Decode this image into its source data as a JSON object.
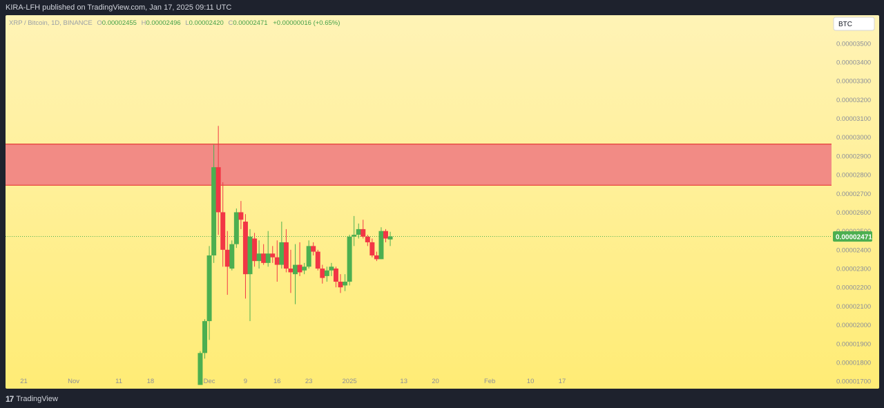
{
  "header": {
    "published_text": "KIRA-LFH published on TradingView.com, Jan 17, 2025 09:11 UTC"
  },
  "footer": {
    "logo_glyph": "17",
    "brand": "TradingView"
  },
  "symbol": {
    "name": "XRP / Bitcoin, 1D, BINANCE",
    "o_label": "O",
    "o_value": "0.00002455",
    "h_label": "H",
    "h_value": "0.00002496",
    "l_label": "L",
    "l_value": "0.00002420",
    "c_label": "C",
    "c_value": "0.00002471",
    "change": "+0.00000016 (+0.65%)"
  },
  "currency_button": "BTC",
  "colors": {
    "up": "#4caf50",
    "down": "#f23645",
    "zone_fill": "#f28b85",
    "zone_border": "#e53935",
    "bg_top": "#fff3b6",
    "bg_bottom": "#ffec75",
    "last_price_bg": "#4caf50"
  },
  "chart_data": {
    "type": "candlestick",
    "y_unit": "BTC",
    "y_range": [
      1.66e-05,
      3.65e-05
    ],
    "y_ticks": [
      1.7e-05,
      1.8e-05,
      1.9e-05,
      2e-05,
      2.1e-05,
      2.2e-05,
      2.3e-05,
      2.4e-05,
      2.5e-05,
      2.6e-05,
      2.7e-05,
      2.8e-05,
      2.9e-05,
      3e-05,
      3.1e-05,
      3.2e-05,
      3.3e-05,
      3.4e-05,
      3.5e-05
    ],
    "y_tick_labels": [
      "0.00001700",
      "0.00001800",
      "0.00001900",
      "0.00002000",
      "0.00002100",
      "0.00002200",
      "0.00002300",
      "0.00002400",
      "0.00002500",
      "0.00002600",
      "0.00002700",
      "0.00002800",
      "0.00002900",
      "0.00003000",
      "0.00003100",
      "0.00003200",
      "0.00003300",
      "0.00003400",
      "0.00003500"
    ],
    "x_ticks": [
      {
        "label": "21",
        "date": "2024-10-21"
      },
      {
        "label": "Nov",
        "date": "2024-11-01"
      },
      {
        "label": "11",
        "date": "2024-11-11"
      },
      {
        "label": "18",
        "date": "2024-11-18"
      },
      {
        "label": "Dec",
        "date": "2024-12-01"
      },
      {
        "label": "9",
        "date": "2024-12-09"
      },
      {
        "label": "16",
        "date": "2024-12-16"
      },
      {
        "label": "23",
        "date": "2024-12-23"
      },
      {
        "label": "2025",
        "date": "2025-01-01"
      },
      {
        "label": "13",
        "date": "2025-01-13"
      },
      {
        "label": "20",
        "date": "2025-01-20"
      },
      {
        "label": "Feb",
        "date": "2025-02-01"
      },
      {
        "label": "10",
        "date": "2025-02-10"
      },
      {
        "label": "17",
        "date": "2025-02-17"
      }
    ],
    "last_price": 2.471e-05,
    "last_price_label": "0.00002471",
    "resistance_zone": [
      2.744e-05,
      2.963e-05
    ],
    "candles": [
      {
        "date": "2024-11-29",
        "o": 1.68e-05,
        "h": 1.86e-05,
        "l": 1.68e-05,
        "c": 1.85e-05
      },
      {
        "date": "2024-11-30",
        "o": 1.85e-05,
        "h": 2.03e-05,
        "l": 1.82e-05,
        "c": 2.02e-05
      },
      {
        "date": "2024-12-01",
        "o": 2.02e-05,
        "h": 2.42e-05,
        "l": 1.92e-05,
        "c": 2.37e-05
      },
      {
        "date": "2024-12-02",
        "o": 2.37e-05,
        "h": 2.96e-05,
        "l": 2.33e-05,
        "c": 2.84e-05
      },
      {
        "date": "2024-12-03",
        "o": 2.84e-05,
        "h": 3.06e-05,
        "l": 2.48e-05,
        "c": 2.6e-05
      },
      {
        "date": "2024-12-04",
        "o": 2.6e-05,
        "h": 2.76e-05,
        "l": 2.31e-05,
        "c": 2.4e-05
      },
      {
        "date": "2024-12-05",
        "o": 2.4e-05,
        "h": 2.5e-05,
        "l": 2.16e-05,
        "c": 2.31e-05
      },
      {
        "date": "2024-12-06",
        "o": 2.3e-05,
        "h": 2.45e-05,
        "l": 2.29e-05,
        "c": 2.43e-05
      },
      {
        "date": "2024-12-07",
        "o": 2.43e-05,
        "h": 2.62e-05,
        "l": 2.41e-05,
        "c": 2.6e-05
      },
      {
        "date": "2024-12-08",
        "o": 2.6e-05,
        "h": 2.66e-05,
        "l": 2.51e-05,
        "c": 2.56e-05
      },
      {
        "date": "2024-12-09",
        "o": 2.55e-05,
        "h": 2.59e-05,
        "l": 2.14e-05,
        "c": 2.27e-05
      },
      {
        "date": "2024-12-10",
        "o": 2.27e-05,
        "h": 2.51e-05,
        "l": 2.02e-05,
        "c": 2.47e-05
      },
      {
        "date": "2024-12-11",
        "o": 2.46e-05,
        "h": 2.49e-05,
        "l": 2.31e-05,
        "c": 2.34e-05
      },
      {
        "date": "2024-12-12",
        "o": 2.34e-05,
        "h": 2.45e-05,
        "l": 2.3e-05,
        "c": 2.38e-05
      },
      {
        "date": "2024-12-13",
        "o": 2.38e-05,
        "h": 2.43e-05,
        "l": 2.32e-05,
        "c": 2.33e-05
      },
      {
        "date": "2024-12-14",
        "o": 2.33e-05,
        "h": 2.5e-05,
        "l": 2.31e-05,
        "c": 2.38e-05
      },
      {
        "date": "2024-12-15",
        "o": 2.38e-05,
        "h": 2.42e-05,
        "l": 2.33e-05,
        "c": 2.36e-05
      },
      {
        "date": "2024-12-16",
        "o": 2.36e-05,
        "h": 2.45e-05,
        "l": 2.23e-05,
        "c": 2.32e-05
      },
      {
        "date": "2024-12-17",
        "o": 2.32e-05,
        "h": 2.55e-05,
        "l": 2.3e-05,
        "c": 2.44e-05
      },
      {
        "date": "2024-12-18",
        "o": 2.44e-05,
        "h": 2.51e-05,
        "l": 2.28e-05,
        "c": 2.3e-05
      },
      {
        "date": "2024-12-19",
        "o": 2.3e-05,
        "h": 2.4e-05,
        "l": 2.17e-05,
        "c": 2.28e-05
      },
      {
        "date": "2024-12-20",
        "o": 2.27e-05,
        "h": 2.43e-05,
        "l": 2.11e-05,
        "c": 2.32e-05
      },
      {
        "date": "2024-12-21",
        "o": 2.32e-05,
        "h": 2.44e-05,
        "l": 2.26e-05,
        "c": 2.28e-05
      },
      {
        "date": "2024-12-22",
        "o": 2.29e-05,
        "h": 2.33e-05,
        "l": 2.27e-05,
        "c": 2.31e-05
      },
      {
        "date": "2024-12-23",
        "o": 2.31e-05,
        "h": 2.45e-05,
        "l": 2.3e-05,
        "c": 2.42e-05
      },
      {
        "date": "2024-12-24",
        "o": 2.42e-05,
        "h": 2.44e-05,
        "l": 2.37e-05,
        "c": 2.39e-05
      },
      {
        "date": "2024-12-25",
        "o": 2.39e-05,
        "h": 2.4e-05,
        "l": 2.29e-05,
        "c": 2.3e-05
      },
      {
        "date": "2024-12-26",
        "o": 2.3e-05,
        "h": 2.32e-05,
        "l": 2.22e-05,
        "c": 2.25e-05
      },
      {
        "date": "2024-12-27",
        "o": 2.26e-05,
        "h": 2.31e-05,
        "l": 2.23e-05,
        "c": 2.29e-05
      },
      {
        "date": "2024-12-28",
        "o": 2.29e-05,
        "h": 2.33e-05,
        "l": 2.26e-05,
        "c": 2.31e-05
      },
      {
        "date": "2024-12-29",
        "o": 2.3e-05,
        "h": 2.31e-05,
        "l": 2.2e-05,
        "c": 2.23e-05
      },
      {
        "date": "2024-12-30",
        "o": 2.23e-05,
        "h": 2.27e-05,
        "l": 2.17e-05,
        "c": 2.2e-05
      },
      {
        "date": "2024-12-31",
        "o": 2.21e-05,
        "h": 2.27e-05,
        "l": 2.18e-05,
        "c": 2.23e-05
      },
      {
        "date": "2025-01-01",
        "o": 2.23e-05,
        "h": 2.48e-05,
        "l": 2.21e-05,
        "c": 2.47e-05
      },
      {
        "date": "2025-01-02",
        "o": 2.47e-05,
        "h": 2.58e-05,
        "l": 2.42e-05,
        "c": 2.48e-05
      },
      {
        "date": "2025-01-03",
        "o": 2.48e-05,
        "h": 2.54e-05,
        "l": 2.46e-05,
        "c": 2.51e-05
      },
      {
        "date": "2025-01-04",
        "o": 2.51e-05,
        "h": 2.56e-05,
        "l": 2.46e-05,
        "c": 2.47e-05
      },
      {
        "date": "2025-01-05",
        "o": 2.47e-05,
        "h": 2.48e-05,
        "l": 2.42e-05,
        "c": 2.44e-05
      },
      {
        "date": "2025-01-06",
        "o": 2.44e-05,
        "h": 2.46e-05,
        "l": 2.36e-05,
        "c": 2.37e-05
      },
      {
        "date": "2025-01-07",
        "o": 2.37e-05,
        "h": 2.39e-05,
        "l": 2.34e-05,
        "c": 2.35e-05
      },
      {
        "date": "2025-01-08",
        "o": 2.35e-05,
        "h": 2.52e-05,
        "l": 2.35e-05,
        "c": 2.5e-05
      },
      {
        "date": "2025-01-09",
        "o": 2.5e-05,
        "h": 2.51e-05,
        "l": 2.44e-05,
        "c": 2.46e-05
      },
      {
        "date": "2025-01-10",
        "o": 2.455e-05,
        "h": 2.496e-05,
        "l": 2.42e-05,
        "c": 2.471e-05
      }
    ]
  }
}
